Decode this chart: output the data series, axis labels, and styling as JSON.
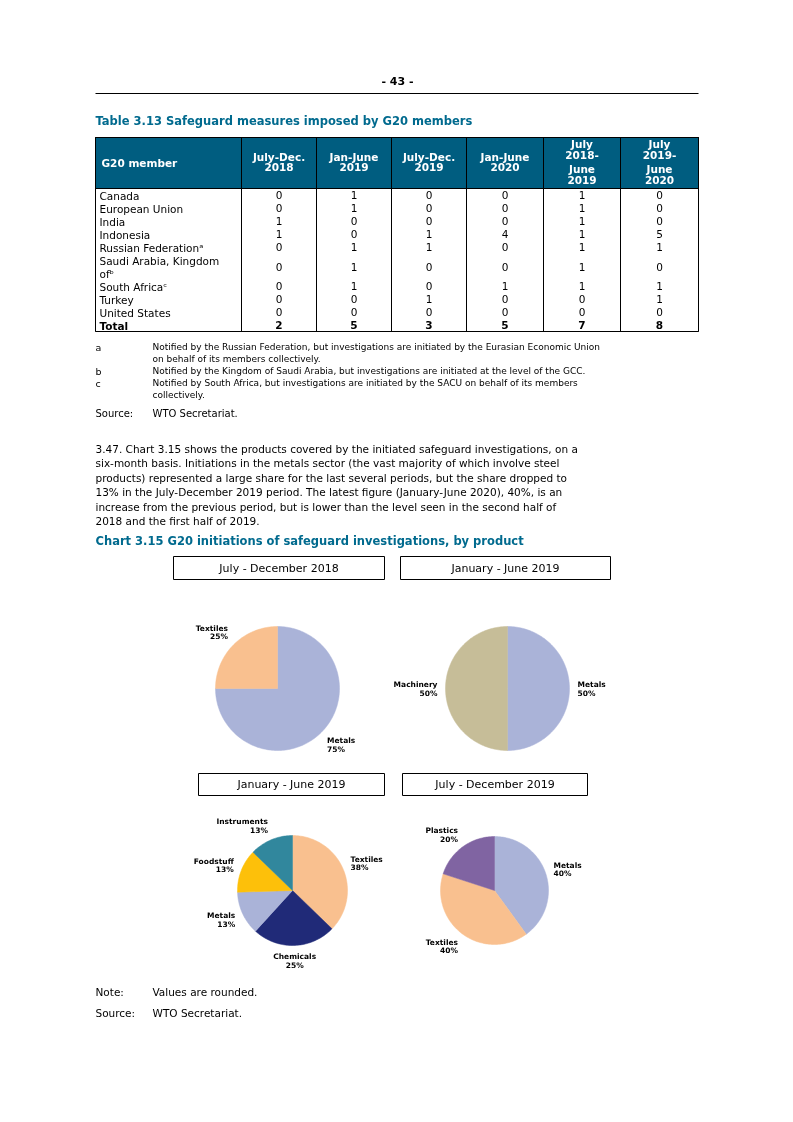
{
  "chart_data": [
    {
      "type": "heatmap",
      "title": "Table 3.13 Safeguard measures imposed by G20 members",
      "ylabel": "G20 member",
      "data_labels": true,
      "categories": [
        "July-Dec. 2018",
        "Jan-June 2019",
        "July-Dec. 2019",
        "Jan-June 2020",
        "July 2018- June 2019",
        "July 2019- June 2020"
      ],
      "y_categories": [
        "Canada",
        "European Union",
        "India",
        "Indonesia",
        "Russian Federationᵃ",
        "Saudi Arabia, Kingdom ofᵇ",
        "South Africaᶜ",
        "Turkey",
        "United States",
        "Total"
      ],
      "cells": [
        [
          0,
          1,
          0,
          0,
          1,
          0
        ],
        [
          0,
          1,
          0,
          0,
          1,
          0
        ],
        [
          1,
          0,
          0,
          0,
          1,
          0
        ],
        [
          1,
          0,
          1,
          4,
          1,
          5
        ],
        [
          0,
          1,
          1,
          0,
          1,
          1
        ],
        [
          0,
          1,
          0,
          0,
          1,
          0
        ],
        [
          0,
          1,
          0,
          1,
          1,
          1
        ],
        [
          0,
          0,
          1,
          0,
          0,
          1
        ],
        [
          0,
          0,
          0,
          0,
          0,
          0
        ],
        [
          2,
          5,
          3,
          5,
          7,
          8
        ]
      ],
      "annotations": [
        "- 43 -",
        "a Notified by the Russian Federation, but investigations are initiated by the Eurasian Economic Union on behalf of its members collectively.",
        "b Notified by the Kingdom of Saudi Arabia, but investigations are initiated at the level of the GCC.",
        "c Notified by South Africa, but investigations are initiated by the SACU on behalf of its members collectively.",
        "Source: WTO Secretariat.",
        "3.47. Chart 3.15 shows the products covered by the initiated safeguard investigations, on a six-month basis. Initiations in the metals sector (the vast majority of which involve steel products) represented a large share for the last several periods, but the share dropped to 13% in the July-December 2019 period. The latest figure (January-June 2020), 40%, is an increase from the previous period, but is lower than the level seen in the second half of 2018 and the first half of 2019.",
        "Chart 3.15 G20 initiations of safeguard investigations, by product"
      ]
    },
    {
      "type": "pie",
      "title": "July - December 2018",
      "categories": [
        "Metals",
        "Textiles"
      ],
      "values": [
        75,
        25
      ],
      "value_labels": [
        "75%",
        "25%"
      ],
      "colors": [
        "#aab3d8",
        "#f9c08f"
      ]
    },
    {
      "type": "pie",
      "title": "January - June 2019",
      "categories": [
        "Metals",
        "Machinery"
      ],
      "values": [
        50,
        50
      ],
      "value_labels": [
        "50%",
        "50%"
      ],
      "colors": [
        "#aab3d8",
        "#c6bd98"
      ]
    },
    {
      "type": "pie",
      "title": "January - June 2019",
      "categories": [
        "Textiles",
        "Chemicals",
        "Metals",
        "Foodstuff",
        "Instruments"
      ],
      "values": [
        38,
        25,
        13,
        13,
        13
      ],
      "value_labels": [
        "38%",
        "25%",
        "13%",
        "13%",
        "13%"
      ],
      "colors": [
        "#f9c08f",
        "#202a78",
        "#aab3d8",
        "#fdc00a",
        "#31879d"
      ]
    },
    {
      "type": "pie",
      "title": "July - December 2019",
      "categories": [
        "Metals",
        "Textiles",
        "Plastics"
      ],
      "values": [
        40,
        40,
        20
      ],
      "value_labels": [
        "40%",
        "40%",
        "20%"
      ],
      "colors": [
        "#aab3d8",
        "#f9c08f",
        "#8064a2"
      ],
      "annotations": [
        "Note: Values are rounded.",
        "Source: WTO Secretariat."
      ]
    }
  ]
}
